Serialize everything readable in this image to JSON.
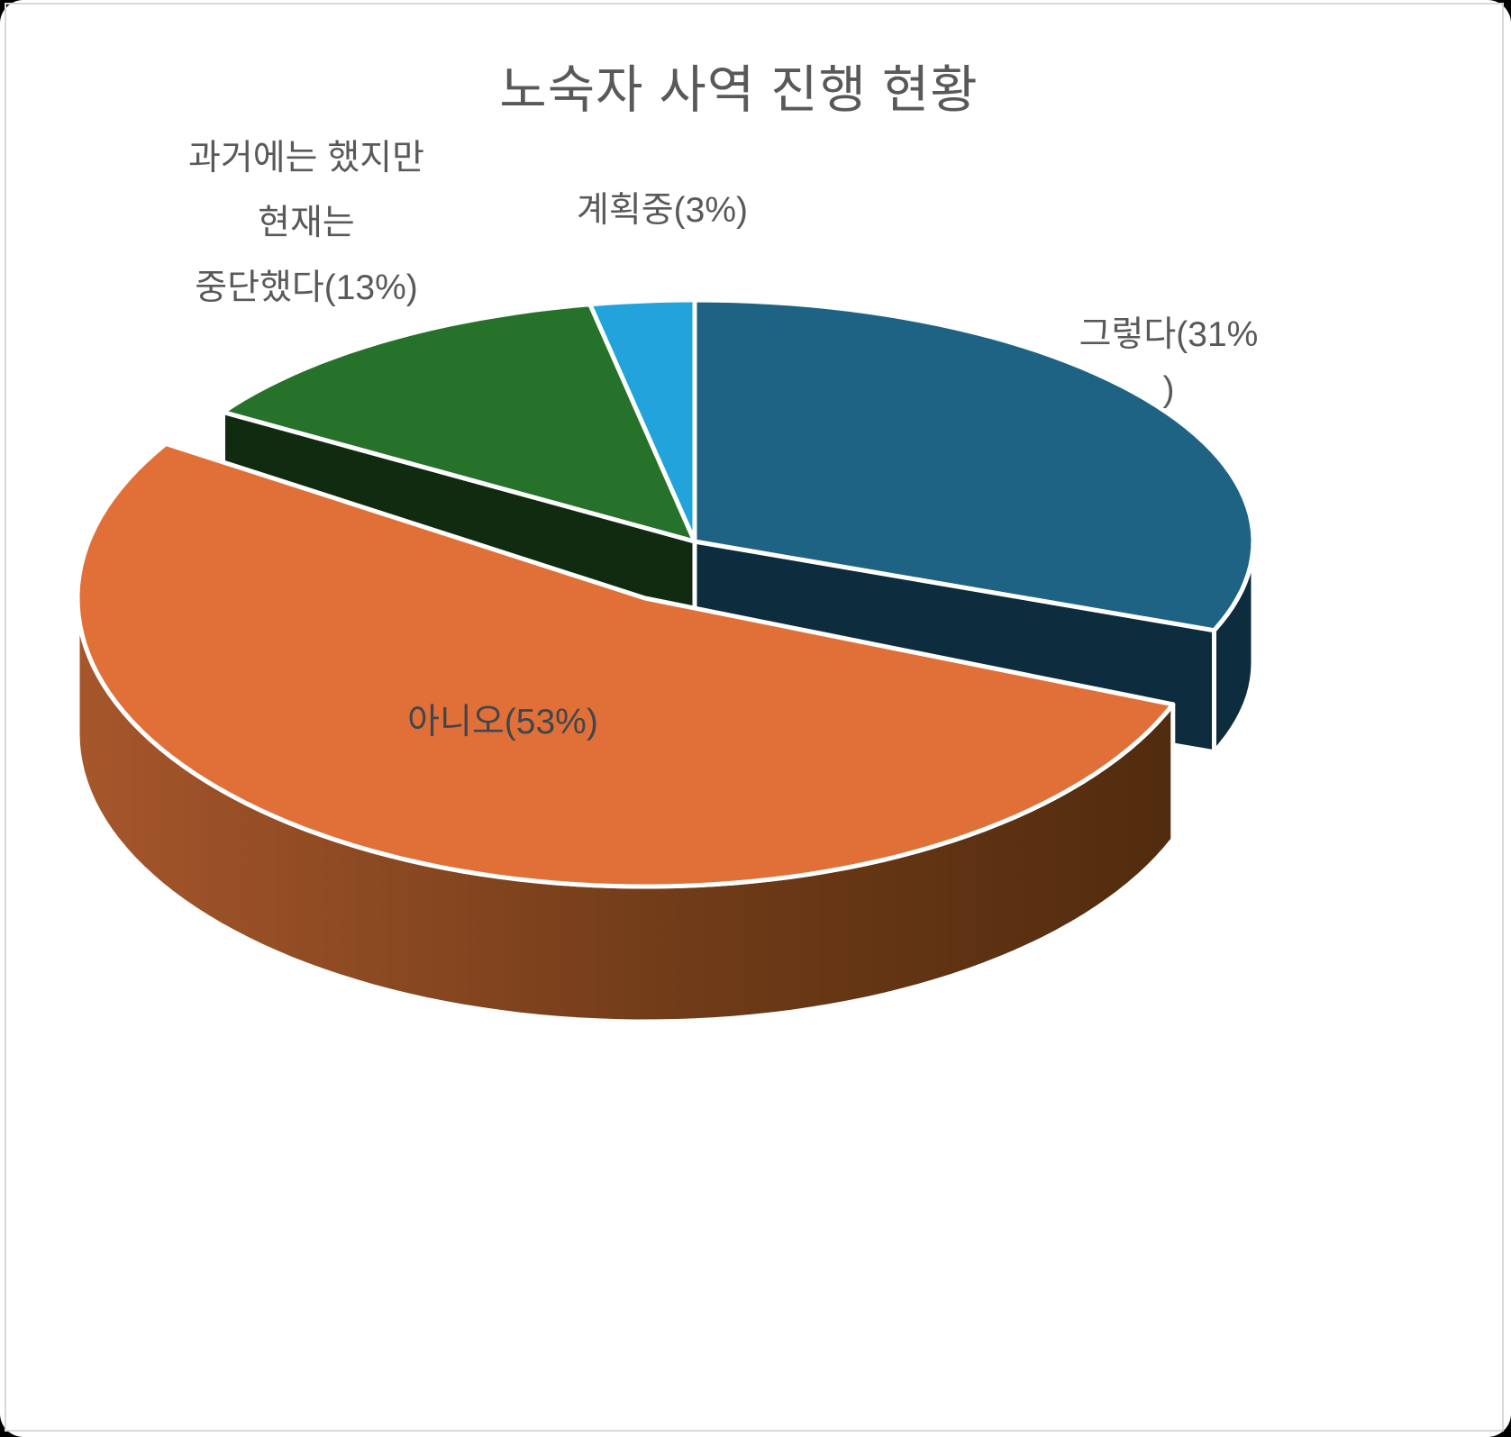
{
  "chart_data": {
    "type": "pie",
    "style": "3d-exploded",
    "title": "노숙자 사역 진행 현황",
    "unit": "%",
    "legend": "none",
    "rotation_start_deg": 90,
    "direction": "clockwise",
    "categories": [
      "그렇다",
      "아니오",
      "과거에는 했지만 현재는 중단했다",
      "계획중"
    ],
    "values": [
      31,
      53,
      13,
      3
    ],
    "slices": [
      {
        "label": "그렇다",
        "value": 31,
        "color": "#1F6384",
        "side_color": "#0D2C3E",
        "exploded": false
      },
      {
        "label": "아니오",
        "value": 53,
        "color": "#E07038",
        "side_color_near": "#A6562B",
        "side_color_far": "#502B0D",
        "exploded": true
      },
      {
        "label": "과거에는 했지만 현재는 중단했다",
        "value": 13,
        "color": "#27722B",
        "side_color": "#112B10",
        "exploded": false
      },
      {
        "label": "계획중",
        "value": 3,
        "color": "#22A3DC",
        "exploded": false
      }
    ]
  },
  "annotations": {
    "yes": {
      "lines": [
        "그렇다(31%",
        ")"
      ]
    },
    "no": {
      "lines": [
        "아니오(53%)"
      ]
    },
    "discontinued": {
      "lines": [
        "과거에는 했지만",
        "현재는",
        "중단했다(13%)"
      ]
    },
    "planning": {
      "lines": [
        "계획중(3%)"
      ]
    }
  },
  "colors": {
    "title": "#595959",
    "label_outside": "#595959",
    "label_on_slice": "#41464C",
    "background": "#FFFFFF",
    "canvas_border": "#D9D9D9",
    "slice_stroke": "#FFFFFF"
  }
}
